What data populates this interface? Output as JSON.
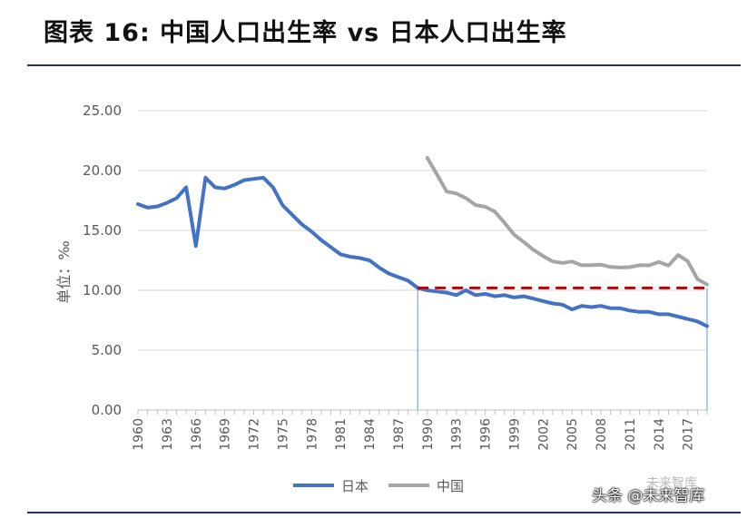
{
  "header": {
    "title": "图表 16: 中国人口出生率 vs 日本人口出生率"
  },
  "watermark": {
    "text": "头条 @未来智库",
    "top_text": "未来智库"
  },
  "chart_data": {
    "type": "line",
    "ylabel": "单位：‰",
    "xlabel": "",
    "title": "",
    "ylim": [
      0,
      25
    ],
    "yticks": [
      "0.00",
      "5.00",
      "10.00",
      "15.00",
      "20.00",
      "25.00"
    ],
    "xlim": [
      1960,
      2019
    ],
    "xtick_labels": [
      "1960",
      "1963",
      "1966",
      "1969",
      "1972",
      "1975",
      "1978",
      "1981",
      "1984",
      "1987",
      "1990",
      "1993",
      "1996",
      "1999",
      "2002",
      "2005",
      "2008",
      "2011",
      "2014",
      "2017"
    ],
    "grid": true,
    "legend_position": "bottom",
    "series": [
      {
        "name": "日本",
        "color": "#4472c4",
        "x": [
          1960,
          1961,
          1962,
          1963,
          1964,
          1965,
          1966,
          1967,
          1968,
          1969,
          1970,
          1971,
          1972,
          1973,
          1974,
          1975,
          1976,
          1977,
          1978,
          1979,
          1980,
          1981,
          1982,
          1983,
          1984,
          1985,
          1986,
          1987,
          1988,
          1989,
          1990,
          1991,
          1992,
          1993,
          1994,
          1995,
          1996,
          1997,
          1998,
          1999,
          2000,
          2001,
          2002,
          2003,
          2004,
          2005,
          2006,
          2007,
          2008,
          2009,
          2010,
          2011,
          2012,
          2013,
          2014,
          2015,
          2016,
          2017,
          2018,
          2019
        ],
        "values": [
          17.2,
          16.9,
          17.0,
          17.3,
          17.7,
          18.6,
          13.7,
          19.4,
          18.6,
          18.5,
          18.8,
          19.2,
          19.3,
          19.4,
          18.6,
          17.1,
          16.3,
          15.5,
          14.9,
          14.2,
          13.6,
          13.0,
          12.8,
          12.7,
          12.5,
          11.9,
          11.4,
          11.1,
          10.8,
          10.2,
          10.0,
          9.9,
          9.8,
          9.6,
          10.0,
          9.6,
          9.7,
          9.5,
          9.6,
          9.4,
          9.5,
          9.3,
          9.1,
          8.9,
          8.8,
          8.4,
          8.7,
          8.6,
          8.7,
          8.5,
          8.5,
          8.3,
          8.2,
          8.2,
          8.0,
          8.0,
          7.8,
          7.6,
          7.4,
          7.0
        ]
      },
      {
        "name": "中国",
        "color": "#a5a5a5",
        "x": [
          1990,
          1991,
          1992,
          1993,
          1994,
          1995,
          1996,
          1997,
          1998,
          1999,
          2000,
          2001,
          2002,
          2003,
          2004,
          2005,
          2006,
          2007,
          2008,
          2009,
          2010,
          2011,
          2012,
          2013,
          2014,
          2015,
          2016,
          2017,
          2018,
          2019
        ],
        "values": [
          21.06,
          19.68,
          18.24,
          18.09,
          17.7,
          17.12,
          16.98,
          16.57,
          15.64,
          14.64,
          14.03,
          13.38,
          12.86,
          12.41,
          12.29,
          12.4,
          12.09,
          12.1,
          12.14,
          11.95,
          11.9,
          11.93,
          12.1,
          12.08,
          12.37,
          12.07,
          12.95,
          12.43,
          10.94,
          10.48
        ]
      }
    ],
    "reference_line": {
      "value": 10.2,
      "x_start": 1989,
      "x_end": 2019,
      "color": "#c00000",
      "style": "dashed"
    },
    "vertical_markers": [
      1989,
      2019
    ],
    "vertical_marker_color": "#5b9bd5"
  }
}
